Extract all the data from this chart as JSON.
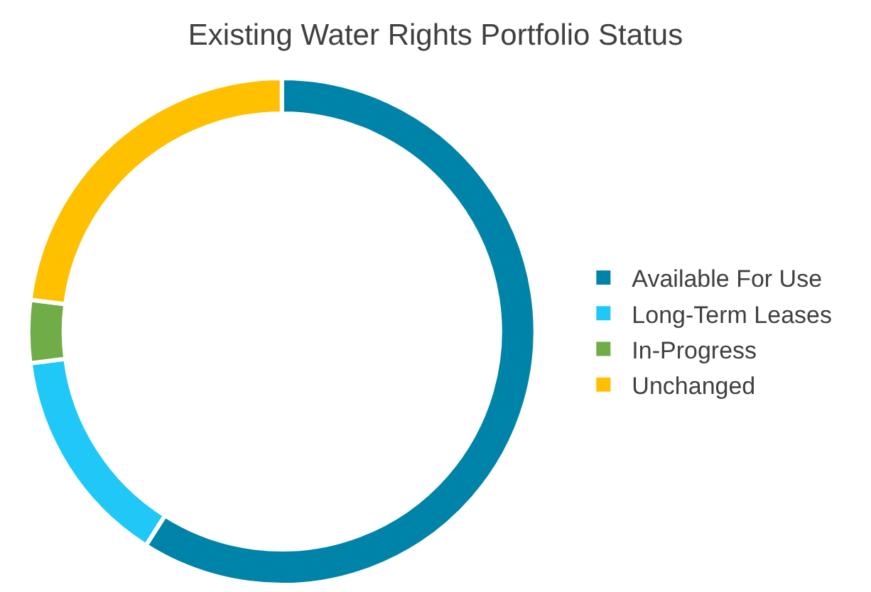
{
  "chart_data": {
    "type": "donut",
    "title": "Existing Water Rights Portfolio Status",
    "categories": [
      "Available For Use",
      "Long-Term Leases",
      "In-Progress",
      "Unchanged"
    ],
    "values": [
      59,
      14,
      4,
      23
    ],
    "colors": [
      "#0083a9",
      "#1fc8f7",
      "#70ad47",
      "#ffc000"
    ],
    "legend": "right"
  }
}
